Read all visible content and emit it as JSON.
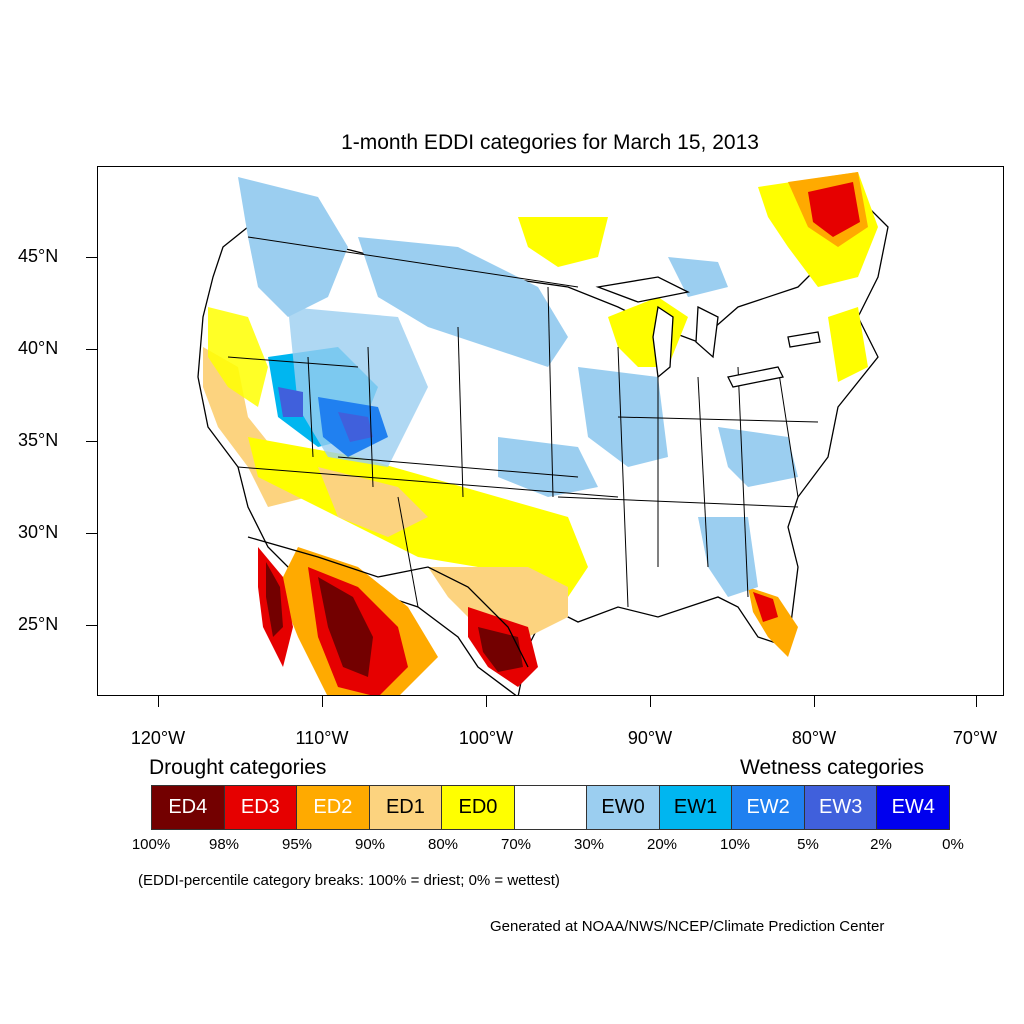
{
  "title": "1-month EDDI categories for March 15, 2013",
  "axes": {
    "latitude_labels": [
      "45°N",
      "40°N",
      "35°N",
      "30°N",
      "25°N"
    ],
    "longitude_labels": [
      "120°W",
      "110°W",
      "100°W",
      "90°W",
      "80°W",
      "70°W"
    ]
  },
  "legend": {
    "drought_heading": "Drought categories",
    "wetness_heading": "Wetness categories",
    "categories": [
      {
        "label": "ED4",
        "color": "#730000",
        "text_color": "#ffffff"
      },
      {
        "label": "ED3",
        "color": "#e60000",
        "text_color": "#ffffff"
      },
      {
        "label": "ED2",
        "color": "#ffaa00",
        "text_color": "#ffffff"
      },
      {
        "label": "ED1",
        "color": "#fcd37f",
        "text_color": "#000000"
      },
      {
        "label": "ED0",
        "color": "#ffff00",
        "text_color": "#000000"
      },
      {
        "label": "",
        "color": "#ffffff",
        "text_color": "#000000"
      },
      {
        "label": "EW0",
        "color": "#9bcef0",
        "text_color": "#000000"
      },
      {
        "label": "EW1",
        "color": "#00b6f0",
        "text_color": "#000000"
      },
      {
        "label": "EW2",
        "color": "#2080f0",
        "text_color": "#ffffff"
      },
      {
        "label": "EW3",
        "color": "#4060dc",
        "text_color": "#ffffff"
      },
      {
        "label": "EW4",
        "color": "#0000ee",
        "text_color": "#ffffff"
      }
    ],
    "breaks": [
      "100%",
      "98%",
      "95%",
      "90%",
      "80%",
      "70%",
      "30%",
      "20%",
      "10%",
      "5%",
      "2%",
      "0%"
    ]
  },
  "footnote": "(EDDI-percentile category breaks: 100% = driest; 0% = wettest)",
  "credit": "Generated at NOAA/NWS/NCEP/Climate Prediction Center"
}
